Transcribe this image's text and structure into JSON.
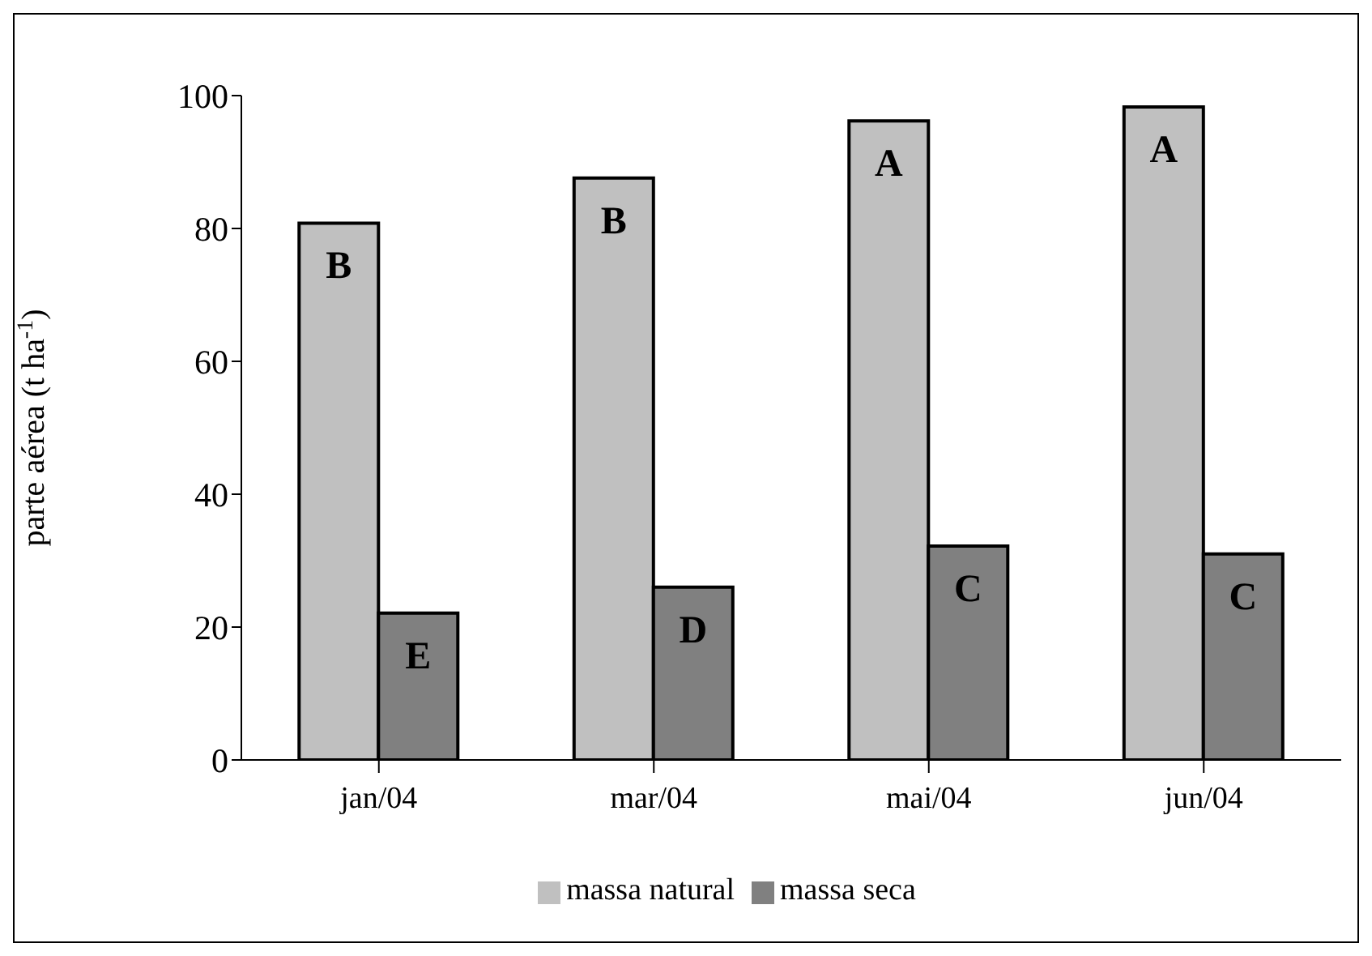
{
  "chart_data": {
    "type": "bar",
    "ylabel": "parte aérea (t ha$^{-1}$)",
    "categories": [
      "jan/04",
      "mar/04",
      "mai/04",
      "jun/04"
    ],
    "series": [
      {
        "name": "massa natural",
        "color": "#c0c0c0",
        "values": [
          80.8,
          87.6,
          96.2,
          98.3
        ],
        "value_labels": [
          "B",
          "B",
          "A",
          "A"
        ]
      },
      {
        "name": "massa seca",
        "color": "#808080",
        "values": [
          22.1,
          26.0,
          32.2,
          31.0
        ],
        "value_labels": [
          "E",
          "D",
          "C",
          "C"
        ]
      }
    ],
    "ylim": [
      0,
      100
    ],
    "yticks": [
      0,
      20,
      40,
      60,
      80,
      100
    ],
    "grid": false,
    "legend": "bottom"
  }
}
